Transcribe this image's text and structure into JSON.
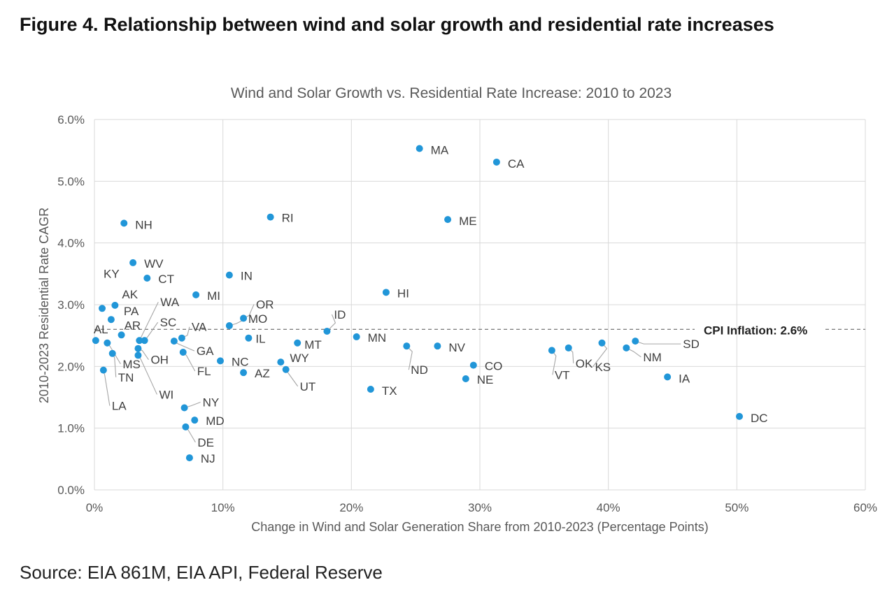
{
  "figure_title": "Figure 4. Relationship between wind and solar growth and residential rate increases",
  "source": "Source: EIA 861M, EIA API, Federal Reserve",
  "colors": {
    "point": "#2196d8",
    "grid": "#d9d9d9",
    "text": "#595959",
    "reference_line": "#808080"
  },
  "chart_data": {
    "type": "scatter",
    "title": "Wind and Solar Growth vs. Residential Rate Increase: 2010 to 2023",
    "xlabel": "Change in Wind and Solar Generation Share from 2010-2023 (Percentage Points)",
    "ylabel": "2010-2023 Residential Rate CAGR",
    "xlim": [
      0,
      60
    ],
    "ylim": [
      0,
      6
    ],
    "x_ticks": [
      "0%",
      "10%",
      "20%",
      "30%",
      "40%",
      "50%",
      "60%"
    ],
    "y_ticks": [
      "0.0%",
      "1.0%",
      "2.0%",
      "3.0%",
      "4.0%",
      "5.0%",
      "6.0%"
    ],
    "grid": true,
    "reference_line": {
      "y": 2.6,
      "label": "CPI Inflation: 2.6%"
    },
    "points": [
      {
        "label": "MA",
        "x": 25.3,
        "y": 5.53
      },
      {
        "label": "CA",
        "x": 31.3,
        "y": 5.31
      },
      {
        "label": "RI",
        "x": 13.7,
        "y": 4.42
      },
      {
        "label": "ME",
        "x": 27.5,
        "y": 4.38
      },
      {
        "label": "NH",
        "x": 2.3,
        "y": 4.32
      },
      {
        "label": "WV",
        "x": 3.0,
        "y": 3.68
      },
      {
        "label": "IN",
        "x": 10.5,
        "y": 3.48
      },
      {
        "label": "CT",
        "x": 4.1,
        "y": 3.43
      },
      {
        "label": "HI",
        "x": 22.7,
        "y": 3.2
      },
      {
        "label": "MI",
        "x": 7.9,
        "y": 3.16
      },
      {
        "label": "AK",
        "x": 1.6,
        "y": 2.99
      },
      {
        "label": "KY",
        "x": 0.6,
        "y": 2.94
      },
      {
        "label": "OR",
        "x": 11.6,
        "y": 2.78
      },
      {
        "label": "PA",
        "x": 1.3,
        "y": 2.76
      },
      {
        "label": "MO",
        "x": 10.5,
        "y": 2.66
      },
      {
        "label": "ID",
        "x": 18.1,
        "y": 2.57
      },
      {
        "label": "AR",
        "x": 2.1,
        "y": 2.51
      },
      {
        "label": "VA",
        "x": 6.8,
        "y": 2.46
      },
      {
        "label": "IL",
        "x": 12.0,
        "y": 2.46
      },
      {
        "label": "MN",
        "x": 20.4,
        "y": 2.48
      },
      {
        "label": "AL",
        "x": 0.1,
        "y": 2.42
      },
      {
        "label": "SC",
        "x": 3.9,
        "y": 2.42
      },
      {
        "label": "WA",
        "x": 3.5,
        "y": 2.42
      },
      {
        "label": "GA",
        "x": 6.2,
        "y": 2.41
      },
      {
        "label": "SD",
        "x": 42.1,
        "y": 2.41
      },
      {
        "label": "MS",
        "x": 1.0,
        "y": 2.38
      },
      {
        "label": "MT",
        "x": 15.8,
        "y": 2.38
      },
      {
        "label": "KS",
        "x": 39.5,
        "y": 2.38
      },
      {
        "label": "ND",
        "x": 24.3,
        "y": 2.33
      },
      {
        "label": "NV",
        "x": 26.7,
        "y": 2.33
      },
      {
        "label": "NM",
        "x": 41.4,
        "y": 2.3
      },
      {
        "label": "OK",
        "x": 36.9,
        "y": 2.3
      },
      {
        "label": "OH",
        "x": 3.4,
        "y": 2.29
      },
      {
        "label": "VT",
        "x": 35.6,
        "y": 2.26
      },
      {
        "label": "FL",
        "x": 6.9,
        "y": 2.23
      },
      {
        "label": "TN",
        "x": 1.4,
        "y": 2.21
      },
      {
        "label": "WI",
        "x": 3.4,
        "y": 2.18
      },
      {
        "label": "NC",
        "x": 9.8,
        "y": 2.09
      },
      {
        "label": "WY",
        "x": 14.5,
        "y": 2.07
      },
      {
        "label": "CO",
        "x": 29.5,
        "y": 2.02
      },
      {
        "label": "UT",
        "x": 14.9,
        "y": 1.95
      },
      {
        "label": "LA",
        "x": 0.7,
        "y": 1.94
      },
      {
        "label": "AZ",
        "x": 11.6,
        "y": 1.9
      },
      {
        "label": "IA",
        "x": 44.6,
        "y": 1.83
      },
      {
        "label": "NE",
        "x": 28.9,
        "y": 1.8
      },
      {
        "label": "TX",
        "x": 21.5,
        "y": 1.63
      },
      {
        "label": "NY",
        "x": 7.0,
        "y": 1.33
      },
      {
        "label": "DC",
        "x": 50.2,
        "y": 1.19
      },
      {
        "label": "MD",
        "x": 7.8,
        "y": 1.13
      },
      {
        "label": "DE",
        "x": 7.1,
        "y": 1.02
      },
      {
        "label": "NJ",
        "x": 7.4,
        "y": 0.52
      }
    ]
  }
}
